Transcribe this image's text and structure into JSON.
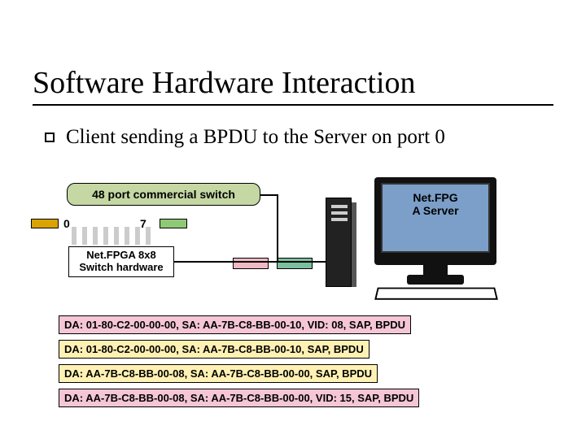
{
  "title": "Software Hardware Interaction",
  "subtitle": "Client sending a BPDU to the Server on port 0",
  "switch": {
    "label": "48 port commercial switch",
    "bg": "#c5d8a4",
    "port0": "0",
    "port7": "7"
  },
  "netfpga": {
    "line1": "Net.FPGA 8x8",
    "line2": "Switch hardware"
  },
  "server": {
    "line1": "Net.FPG",
    "line2": "A Server",
    "screen_bg": "#7b9fc9"
  },
  "client_colors": {
    "left": "#d9a300",
    "right": "#8fc975"
  },
  "mid_box_colors": {
    "a": "#efb9c3",
    "b": "#7bbf9e"
  },
  "packets": [
    {
      "text": "DA: 01-80-C2-00-00-00, SA: AA-7B-C8-BB-00-10, VID: 08, SAP, BPDU",
      "bg": "#f4c6d6"
    },
    {
      "text": "DA: 01-80-C2-00-00-00, SA: AA-7B-C8-BB-00-10, SAP, BPDU",
      "bg": "#fff1b3"
    },
    {
      "text": "DA: AA-7B-C8-BB-00-08, SA: AA-7B-C8-BB-00-00, SAP, BPDU",
      "bg": "#fff1b3"
    },
    {
      "text": "DA: AA-7B-C8-BB-00-08, SA: AA-7B-C8-BB-00-00, VID: 15, SAP, BPDU",
      "bg": "#f4c6d6"
    }
  ]
}
